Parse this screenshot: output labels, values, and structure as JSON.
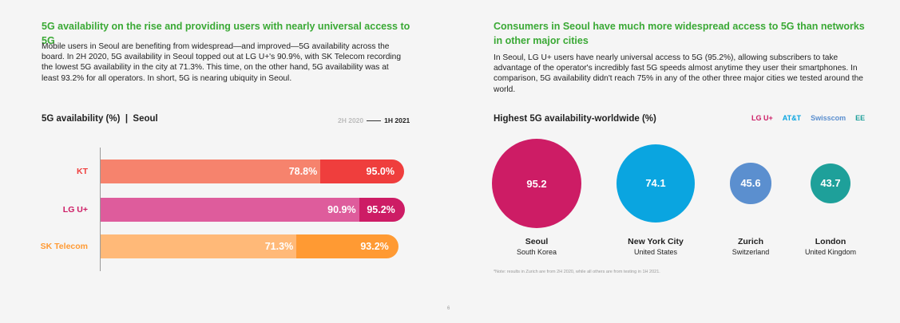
{
  "left": {
    "heading": "5G availability on the rise and providing users with nearly universal access to 5G",
    "body": "Mobile users in Seoul are benefiting from widespread—and improved—5G availability across the board. In 2H 2020, 5G availability in Seoul topped out at LG U+'s 90.9%, with SK Telecom recording the lowest 5G availability in the city at 71.3%. This time, on the other hand, 5G availability was at least 93.2% for all operators. In short, 5G is nearing ubiquity in Seoul.",
    "chart_title": "5G availability (%)  |  Seoul",
    "legend_prev": "2H 2020",
    "legend_curr": "1H 2021"
  },
  "right": {
    "heading": "Consumers in Seoul have much more widespread access to 5G than networks in other major cities",
    "body": "In Seoul, LG U+ users have nearly universal access to 5G (95.2%), allowing subscribers to take advantage of the operator's incredibly fast 5G speeds almost anytime they user their smartphones. In comparison, 5G availability didn't reach 75% in any of the other three major cities we tested around the world.",
    "chart_title": "Highest 5G availability-worldwide (%)",
    "note": "*Note: results in Zurich are from 2H 2020, while all others are from testing in 1H 2021."
  },
  "page_number": "6",
  "chart_data": [
    {
      "type": "bar",
      "title": "5G availability (%)  |  Seoul",
      "categories": [
        "KT",
        "LG U+",
        "SK Telecom"
      ],
      "series": [
        {
          "name": "2H 2020",
          "values": [
            78.8,
            90.9,
            71.3
          ],
          "labels": [
            "78.8%",
            "90.9%",
            "71.3%"
          ]
        },
        {
          "name": "1H 2021",
          "values": [
            95.0,
            95.2,
            93.2
          ],
          "labels": [
            "95.0%",
            "95.2%",
            "93.2%"
          ]
        }
      ],
      "colors": {
        "KT": {
          "prev": "#f6836d",
          "curr": "#ef3e3d",
          "label": "#ef3e3d"
        },
        "LG U+": {
          "prev": "#de5c9c",
          "curr": "#cd1c65",
          "label": "#cd1c65"
        },
        "SK Telecom": {
          "prev": "#ffb978",
          "curr": "#ff9a33",
          "label": "#ff9a33"
        }
      }
    },
    {
      "type": "bubble",
      "title": "Highest 5G availability-worldwide (%)",
      "legend": [
        {
          "name": "LG U+",
          "color": "#cd1c65"
        },
        {
          "name": "AT&T",
          "color": "#0aa5e0"
        },
        {
          "name": "Swisscom",
          "color": "#5b8fcf"
        },
        {
          "name": "EE",
          "color": "#1ea09a"
        }
      ],
      "points": [
        {
          "value": 95.2,
          "label": "95.2",
          "city": "Seoul",
          "country": "South Korea",
          "operator": "LG U+"
        },
        {
          "value": 74.1,
          "label": "74.1",
          "city": "New York City",
          "country": "United States",
          "operator": "AT&T"
        },
        {
          "value": 45.6,
          "label": "45.6",
          "city": "Zurich",
          "country": "Switzerland",
          "operator": "Swisscom"
        },
        {
          "value": 43.7,
          "label": "43.7",
          "city": "London",
          "country": "United Kingdom",
          "operator": "EE"
        }
      ]
    }
  ]
}
